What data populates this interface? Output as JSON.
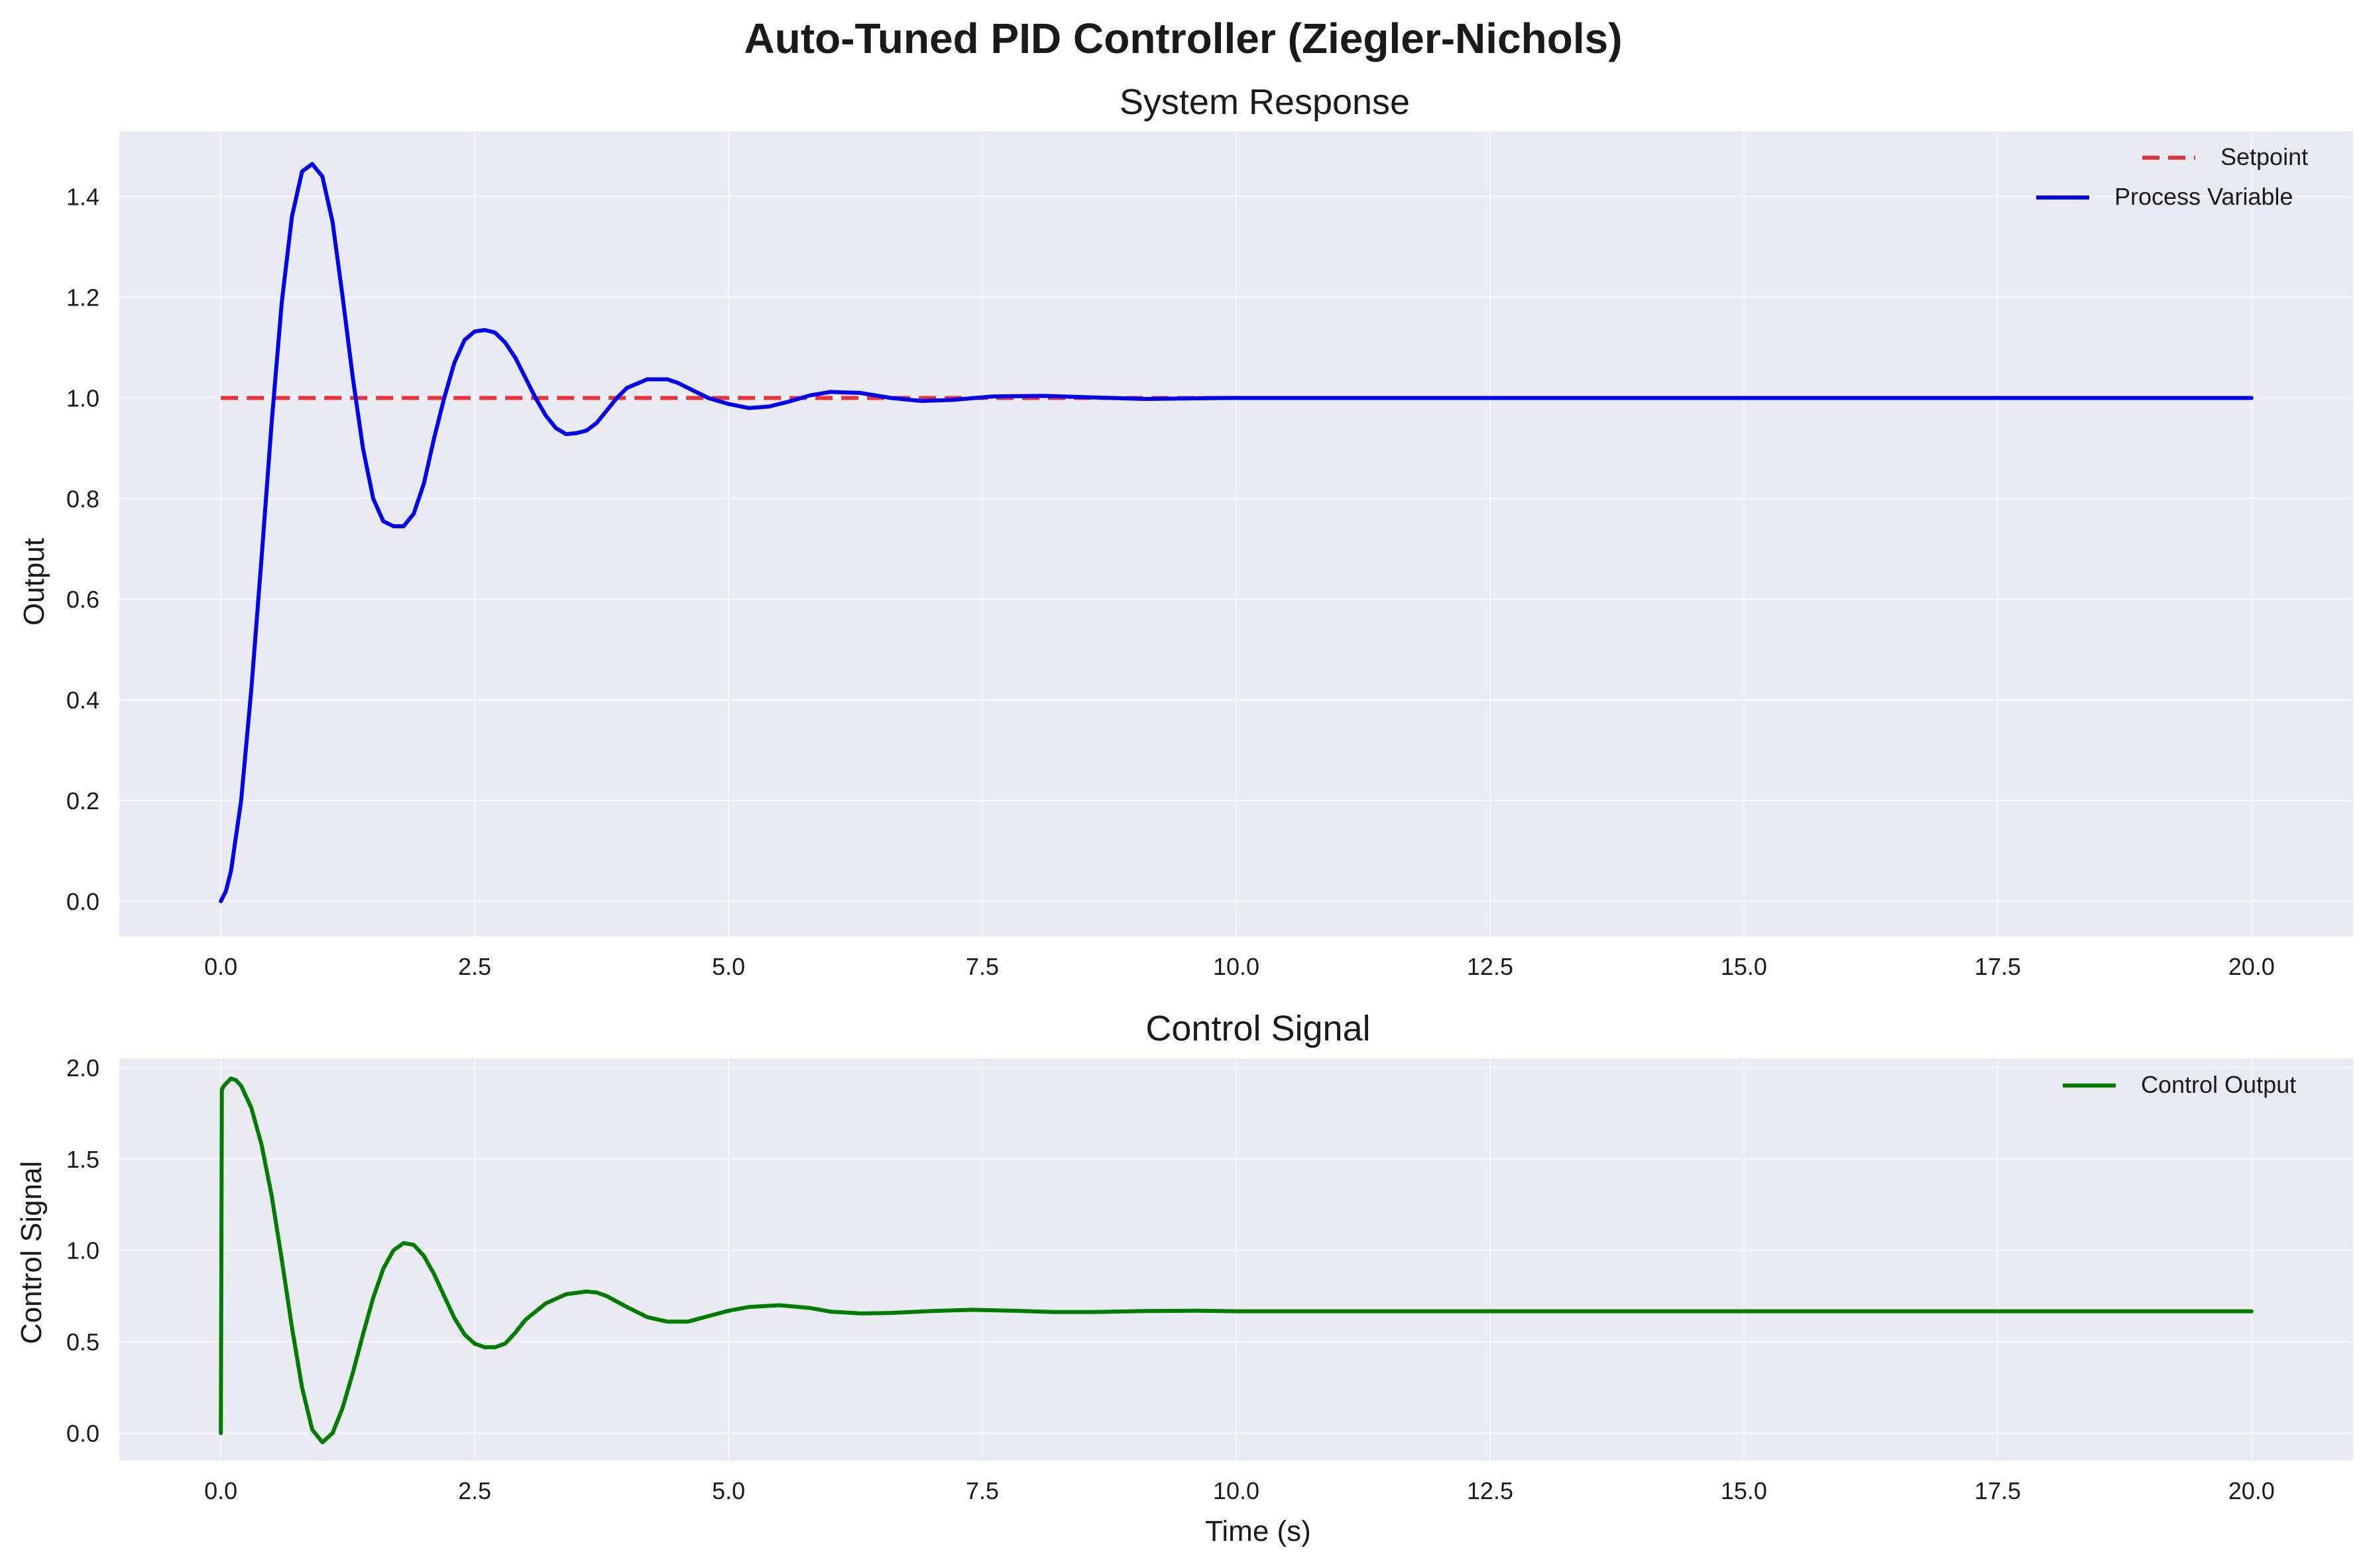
{
  "figure": {
    "suptitle": "Auto-Tuned PID Controller (Ziegler-Nichols)"
  },
  "chart_data": [
    {
      "type": "line",
      "title": "System Response",
      "xlabel": "",
      "ylabel": "Output",
      "xlim": [
        -1.0,
        21.0
      ],
      "ylim": [
        -0.07,
        1.53
      ],
      "xticks": [
        0.0,
        2.5,
        5.0,
        7.5,
        10.0,
        12.5,
        15.0,
        17.5,
        20.0
      ],
      "yticks": [
        0.0,
        0.2,
        0.4,
        0.6,
        0.8,
        1.0,
        1.2,
        1.4
      ],
      "xtick_labels": [
        "0.0",
        "2.5",
        "5.0",
        "7.5",
        "10.0",
        "12.5",
        "15.0",
        "17.5",
        "20.0"
      ],
      "ytick_labels": [
        "0.0",
        "0.2",
        "0.4",
        "0.6",
        "0.8",
        "1.0",
        "1.2",
        "1.4"
      ],
      "grid": true,
      "legend_position": "top-right",
      "series": [
        {
          "name": "Setpoint",
          "color": "#e8333a",
          "style": "dashed",
          "x": [
            0,
            20
          ],
          "y": [
            1.0,
            1.0
          ]
        },
        {
          "name": "Process Variable",
          "color": "#0000ee",
          "style": "solid",
          "x": [
            0,
            0.05,
            0.1,
            0.2,
            0.3,
            0.4,
            0.5,
            0.6,
            0.7,
            0.8,
            0.9,
            1.0,
            1.1,
            1.2,
            1.3,
            1.4,
            1.5,
            1.6,
            1.7,
            1.8,
            1.9,
            2.0,
            2.1,
            2.2,
            2.3,
            2.4,
            2.5,
            2.6,
            2.7,
            2.8,
            2.9,
            3.0,
            3.1,
            3.2,
            3.3,
            3.4,
            3.5,
            3.6,
            3.7,
            3.8,
            3.9,
            4.0,
            4.2,
            4.4,
            4.5,
            4.6,
            4.8,
            5.0,
            5.2,
            5.4,
            5.6,
            5.8,
            6.0,
            6.3,
            6.6,
            6.9,
            7.2,
            7.6,
            8.1,
            8.6,
            9.1,
            9.9,
            10.8,
            12.0,
            14.0,
            17.0,
            20.0
          ],
          "y": [
            0.0,
            0.02,
            0.06,
            0.2,
            0.42,
            0.68,
            0.95,
            1.19,
            1.36,
            1.45,
            1.465,
            1.44,
            1.35,
            1.2,
            1.04,
            0.9,
            0.8,
            0.755,
            0.745,
            0.745,
            0.77,
            0.83,
            0.92,
            1.0,
            1.07,
            1.115,
            1.132,
            1.135,
            1.13,
            1.11,
            1.08,
            1.04,
            1.0,
            0.965,
            0.94,
            0.928,
            0.93,
            0.935,
            0.95,
            0.975,
            1.0,
            1.02,
            1.037,
            1.037,
            1.03,
            1.02,
            1.0,
            0.988,
            0.98,
            0.983,
            0.993,
            1.005,
            1.012,
            1.01,
            1.0,
            0.994,
            0.996,
            1.003,
            1.004,
            1.001,
            0.998,
            1.0,
            1.0,
            1.0,
            1.0,
            1.0,
            1.0
          ]
        }
      ]
    },
    {
      "type": "line",
      "title": "Control Signal",
      "xlabel": "Time (s)",
      "ylabel": "Control Signal",
      "xlim": [
        -1.0,
        21.0
      ],
      "ylim": [
        -0.15,
        2.05
      ],
      "xticks": [
        0.0,
        2.5,
        5.0,
        7.5,
        10.0,
        12.5,
        15.0,
        17.5,
        20.0
      ],
      "yticks": [
        0.0,
        0.5,
        1.0,
        1.5,
        2.0
      ],
      "xtick_labels": [
        "0.0",
        "2.5",
        "5.0",
        "7.5",
        "10.0",
        "12.5",
        "15.0",
        "17.5",
        "20.0"
      ],
      "ytick_labels": [
        "0.0",
        "0.5",
        "1.0",
        "1.5",
        "2.0"
      ],
      "grid": true,
      "legend_position": "top-right",
      "series": [
        {
          "name": "Control Output",
          "color": "#007c00",
          "style": "solid",
          "x": [
            0,
            0.01,
            0.03,
            0.1,
            0.15,
            0.2,
            0.3,
            0.4,
            0.5,
            0.6,
            0.7,
            0.8,
            0.9,
            1.0,
            1.1,
            1.2,
            1.3,
            1.4,
            1.5,
            1.6,
            1.7,
            1.8,
            1.9,
            2.0,
            2.1,
            2.2,
            2.3,
            2.4,
            2.5,
            2.6,
            2.7,
            2.8,
            2.9,
            3.0,
            3.2,
            3.4,
            3.6,
            3.7,
            3.8,
            4.0,
            4.2,
            4.4,
            4.6,
            4.8,
            5.0,
            5.2,
            5.5,
            5.8,
            6.0,
            6.3,
            6.6,
            7.0,
            7.4,
            7.8,
            8.2,
            8.6,
            9.1,
            9.6,
            10.0,
            11.0,
            13.0,
            16.0,
            20.0
          ],
          "y": [
            0.0,
            1.88,
            1.9,
            1.94,
            1.93,
            1.9,
            1.78,
            1.58,
            1.3,
            0.95,
            0.58,
            0.25,
            0.02,
            -0.05,
            0.0,
            0.14,
            0.33,
            0.54,
            0.74,
            0.9,
            1.0,
            1.04,
            1.03,
            0.97,
            0.87,
            0.75,
            0.63,
            0.54,
            0.49,
            0.47,
            0.47,
            0.49,
            0.55,
            0.62,
            0.71,
            0.76,
            0.775,
            0.77,
            0.75,
            0.69,
            0.635,
            0.61,
            0.61,
            0.64,
            0.67,
            0.69,
            0.7,
            0.685,
            0.665,
            0.655,
            0.658,
            0.668,
            0.675,
            0.67,
            0.663,
            0.663,
            0.668,
            0.67,
            0.667,
            0.667,
            0.667,
            0.667,
            0.667
          ]
        }
      ]
    }
  ]
}
